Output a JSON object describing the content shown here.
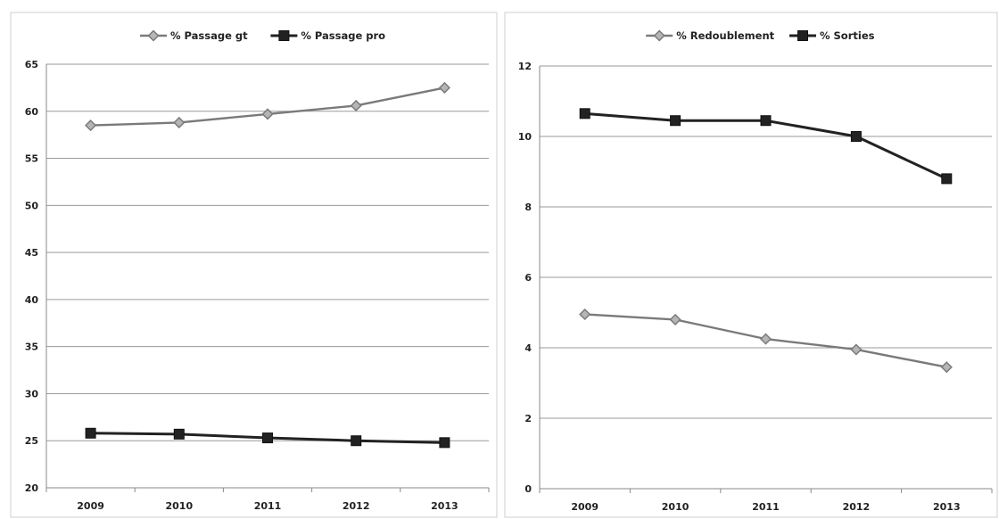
{
  "chart_data": [
    {
      "type": "line",
      "title": "",
      "xlabel": "",
      "ylabel": "",
      "categories": [
        "2009",
        "2010",
        "2011",
        "2012",
        "2013"
      ],
      "ylim": [
        20,
        65
      ],
      "ytick_step": 5,
      "grid": true,
      "legend": "top-center",
      "series": [
        {
          "name": "% Passage gt",
          "values": [
            58.5,
            58.8,
            59.7,
            60.6,
            62.5
          ],
          "color": "#7a7a7a",
          "marker": "diamond"
        },
        {
          "name": "% Passage pro",
          "values": [
            25.8,
            25.7,
            25.3,
            25.0,
            24.8
          ],
          "color": "#222222",
          "marker": "square"
        }
      ]
    },
    {
      "type": "line",
      "title": "",
      "xlabel": "",
      "ylabel": "",
      "categories": [
        "2009",
        "2010",
        "2011",
        "2012",
        "2013"
      ],
      "ylim": [
        0,
        12
      ],
      "ytick_step": 2,
      "grid": true,
      "legend": "top-center",
      "series": [
        {
          "name": "% Redoublement",
          "values": [
            4.95,
            4.8,
            4.25,
            3.95,
            3.45
          ],
          "color": "#7a7a7a",
          "marker": "diamond"
        },
        {
          "name": "% Sorties",
          "values": [
            10.65,
            10.45,
            10.45,
            10.0,
            8.8
          ],
          "color": "#222222",
          "marker": "square"
        }
      ]
    }
  ]
}
